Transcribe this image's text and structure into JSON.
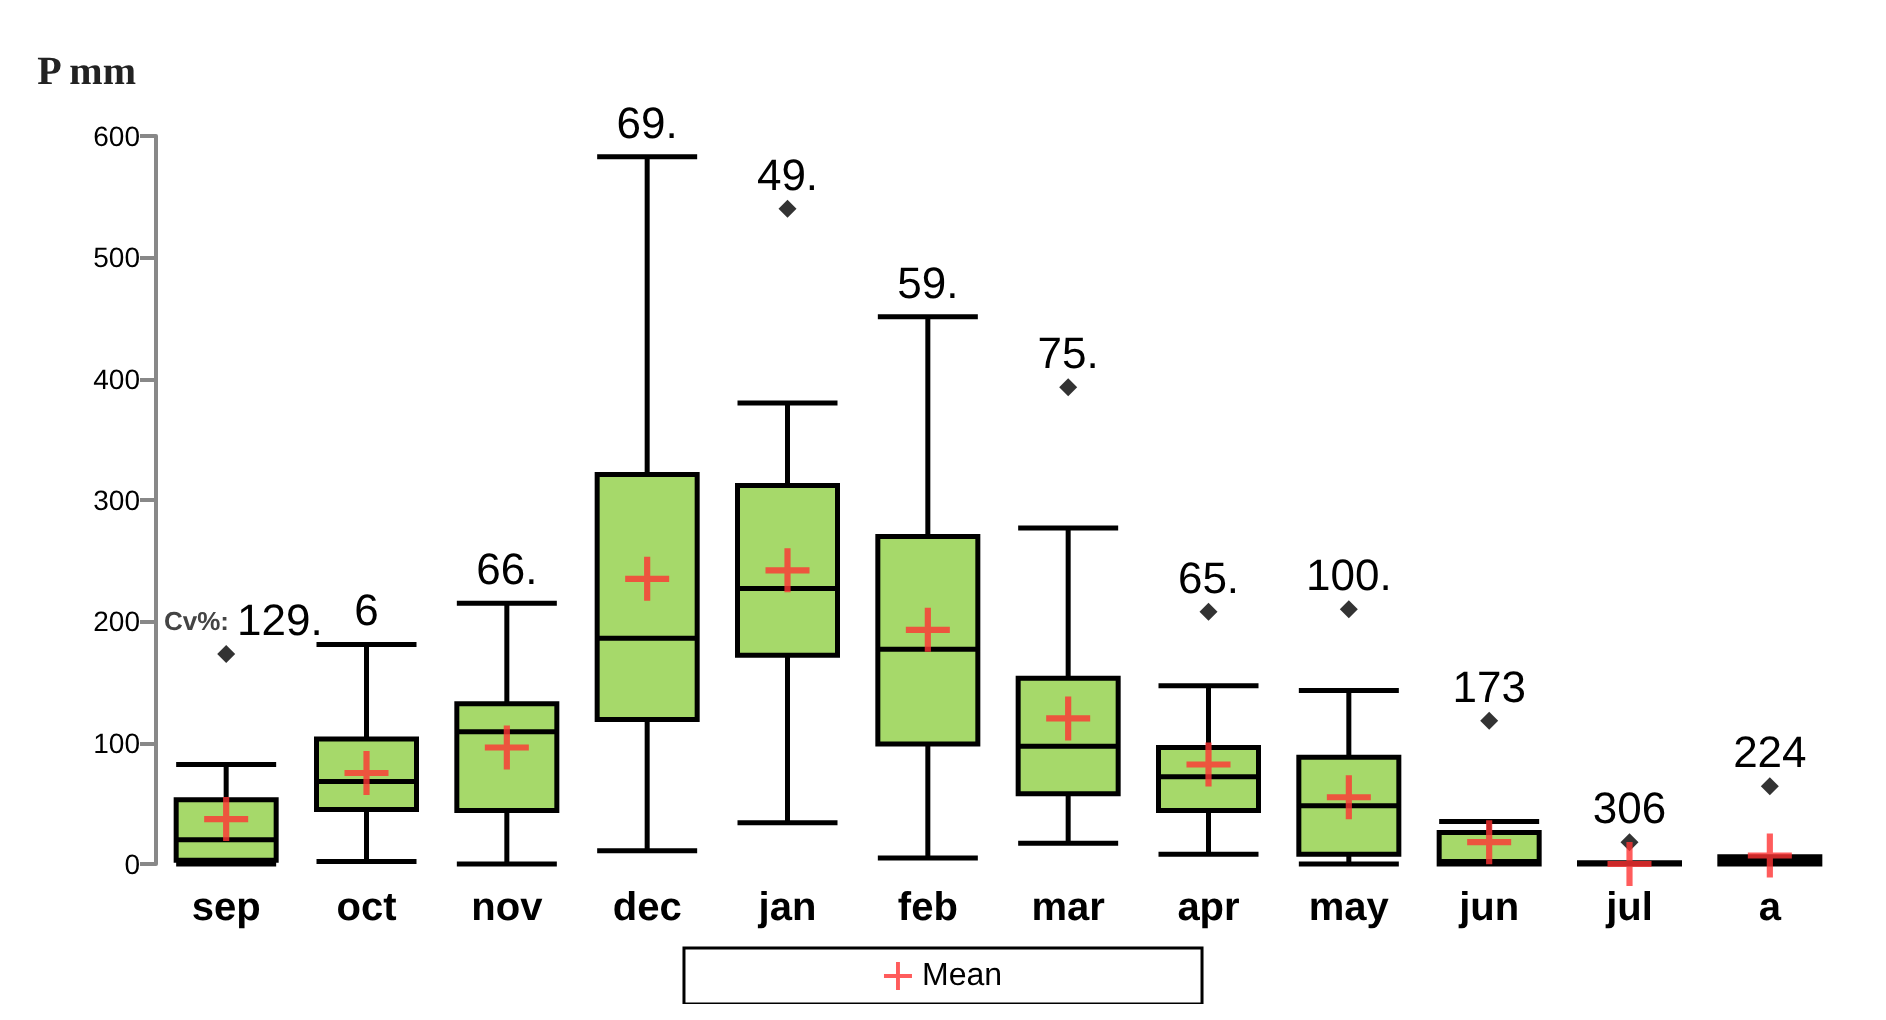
{
  "chart_data": {
    "type": "box",
    "ylabel": "P mm",
    "categories": [
      "sep",
      "oct",
      "nov",
      "dec",
      "jan",
      "feb",
      "mar",
      "apr",
      "may",
      "jun",
      "jul",
      "a"
    ],
    "ylim": [
      0,
      600
    ],
    "yticks": [
      0,
      100,
      200,
      300,
      400,
      500,
      600
    ],
    "legend": "bottom",
    "color": "#a6d96a",
    "boxes": [
      {
        "low": 0,
        "q1": 3,
        "median": 20,
        "q3": 53,
        "high": 82,
        "outliers": [
          173
        ]
      },
      {
        "low": 2,
        "q1": 45,
        "median": 68,
        "q3": 103,
        "high": 181
      },
      {
        "low": 0,
        "q1": 44,
        "median": 109,
        "q3": 132,
        "high": 215
      },
      {
        "low": 11,
        "q1": 119,
        "median": 186,
        "q3": 321,
        "high": 583
      },
      {
        "low": 34,
        "q1": 172,
        "median": 227,
        "q3": 312,
        "high": 380,
        "outliers": [
          540
        ]
      },
      {
        "low": 5,
        "q1": 99,
        "median": 177,
        "q3": 270,
        "high": 451
      },
      {
        "low": 17,
        "q1": 58,
        "median": 97,
        "q3": 153,
        "high": 277,
        "outliers": [
          393
        ]
      },
      {
        "low": 8,
        "q1": 44,
        "median": 72,
        "q3": 96,
        "high": 147,
        "outliers": [
          208
        ]
      },
      {
        "low": 0,
        "q1": 8,
        "median": 48,
        "q3": 88,
        "high": 143,
        "outliers": [
          210
        ]
      },
      {
        "low": 0,
        "q1": 0,
        "median": 2,
        "q3": 26,
        "high": 35,
        "outliers": [
          118
        ]
      },
      {
        "low": 0,
        "q1": 0,
        "median": 0,
        "q3": 1,
        "high": 1,
        "outliers": [
          18
        ]
      },
      {
        "low": 0,
        "q1": 0,
        "median": 2,
        "q3": 6,
        "high": 6,
        "outliers": [
          64
        ]
      }
    ],
    "series": [
      {
        "type": "scatter",
        "name": "Mean",
        "color": "#ff3333",
        "marker": "cross",
        "values": [
          37,
          75,
          96,
          235,
          242,
          193,
          120,
          82,
          55,
          18,
          0,
          7
        ]
      }
    ],
    "annotations": [
      "Cv%:",
      "129.",
      "6",
      "66.",
      "69.",
      "49.",
      "59.",
      "75.",
      "65.",
      "100.",
      "173",
      "306",
      "224"
    ]
  }
}
